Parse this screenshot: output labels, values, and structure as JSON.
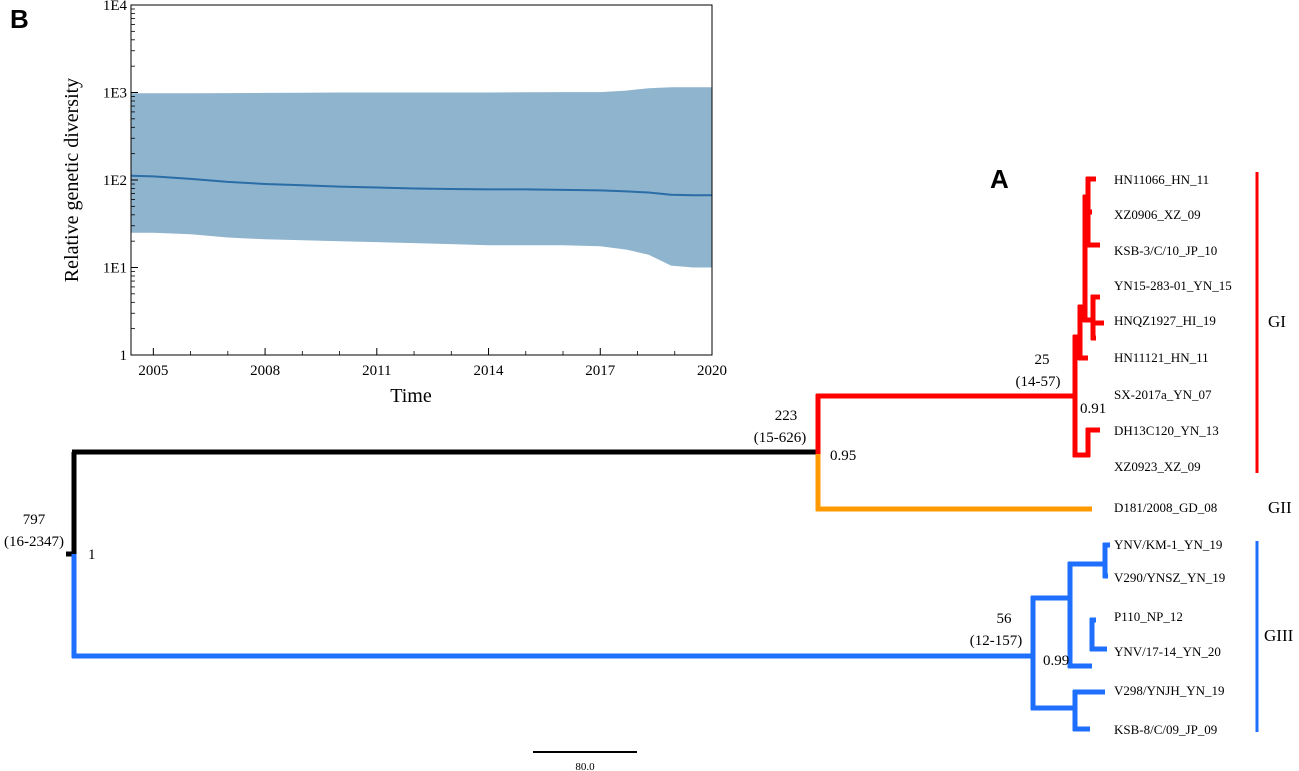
{
  "panel_a": {
    "letter": "A",
    "taxa": [
      "HN11066_HN_11",
      "XZ0906_XZ_09",
      "KSB-3/C/10_JP_10",
      "YN15-283-01_YN_15",
      "HNQZ1927_HI_19",
      "HN11121_HN_11",
      "SX-2017a_YN_07",
      "DH13C120_YN_13",
      "XZ0923_XZ_09",
      "D181/2008_GD_08",
      "YNV/KM-1_YN_19",
      "V290/YNSZ_YN_19",
      "P110_NP_12",
      "YNV/17-14_YN_20",
      "V298/YNJH_YN_19",
      "KSB-8/C/09_JP_09"
    ],
    "nodes": {
      "root": {
        "age": "797",
        "hpd": "(16-2347)",
        "support": "1"
      },
      "gi_gii": {
        "age": "223",
        "hpd": "(15-626)",
        "support": "0.95"
      },
      "gi": {
        "age": "25",
        "hpd": "(14-57)",
        "support": "0.91"
      },
      "giii": {
        "age": "56",
        "hpd": "(12-157)",
        "support": "0.99"
      }
    },
    "clades": [
      {
        "label": "GI",
        "color": "#ff0000"
      },
      {
        "label": "GII",
        "color": "#ff9900"
      },
      {
        "label": "GIII",
        "color": "#1f6fff"
      }
    ],
    "root_branch_color": "#000000",
    "scale_bar": "80.0"
  },
  "panel_b": {
    "letter": "B",
    "xlabel": "Time",
    "ylabel": "Relative genetic diversity",
    "x_ticks": [
      "2005",
      "2008",
      "2011",
      "2014",
      "2017",
      "2020"
    ],
    "y_ticks": [
      "1",
      "1E1",
      "1E2",
      "1E3",
      "1E4"
    ]
  },
  "chart_data": {
    "type": "area",
    "title": "",
    "xlabel": "Time",
    "ylabel": "Relative genetic diversity",
    "y_scale": "log",
    "xlim": [
      2004.4,
      2020
    ],
    "ylim": [
      1,
      10000
    ],
    "grid": false,
    "series": [
      {
        "x": [
          2004.4,
          2005,
          2006,
          2007,
          2008,
          2009,
          2010,
          2011,
          2012,
          2013,
          2014,
          2015,
          2016,
          2017,
          2017.7,
          2018.3,
          2018.9,
          2019.5,
          2020
        ],
        "median": [
          112,
          110,
          103,
          95,
          90,
          87,
          84,
          82,
          80,
          79,
          78,
          78,
          77,
          76,
          74,
          72,
          68,
          67,
          67
        ],
        "upper": [
          980,
          980,
          980,
          985,
          990,
          995,
          1000,
          1000,
          1000,
          1000,
          1000,
          1005,
          1010,
          1010,
          1050,
          1120,
          1150,
          1150,
          1150
        ],
        "lower": [
          25,
          25,
          24,
          22,
          21,
          20.5,
          20,
          19.5,
          19,
          18.5,
          18,
          18,
          18,
          17.5,
          16,
          14,
          10.5,
          10,
          10
        ]
      }
    ],
    "band_color": "#8fb4ce",
    "line_color": "#2b6da6"
  }
}
